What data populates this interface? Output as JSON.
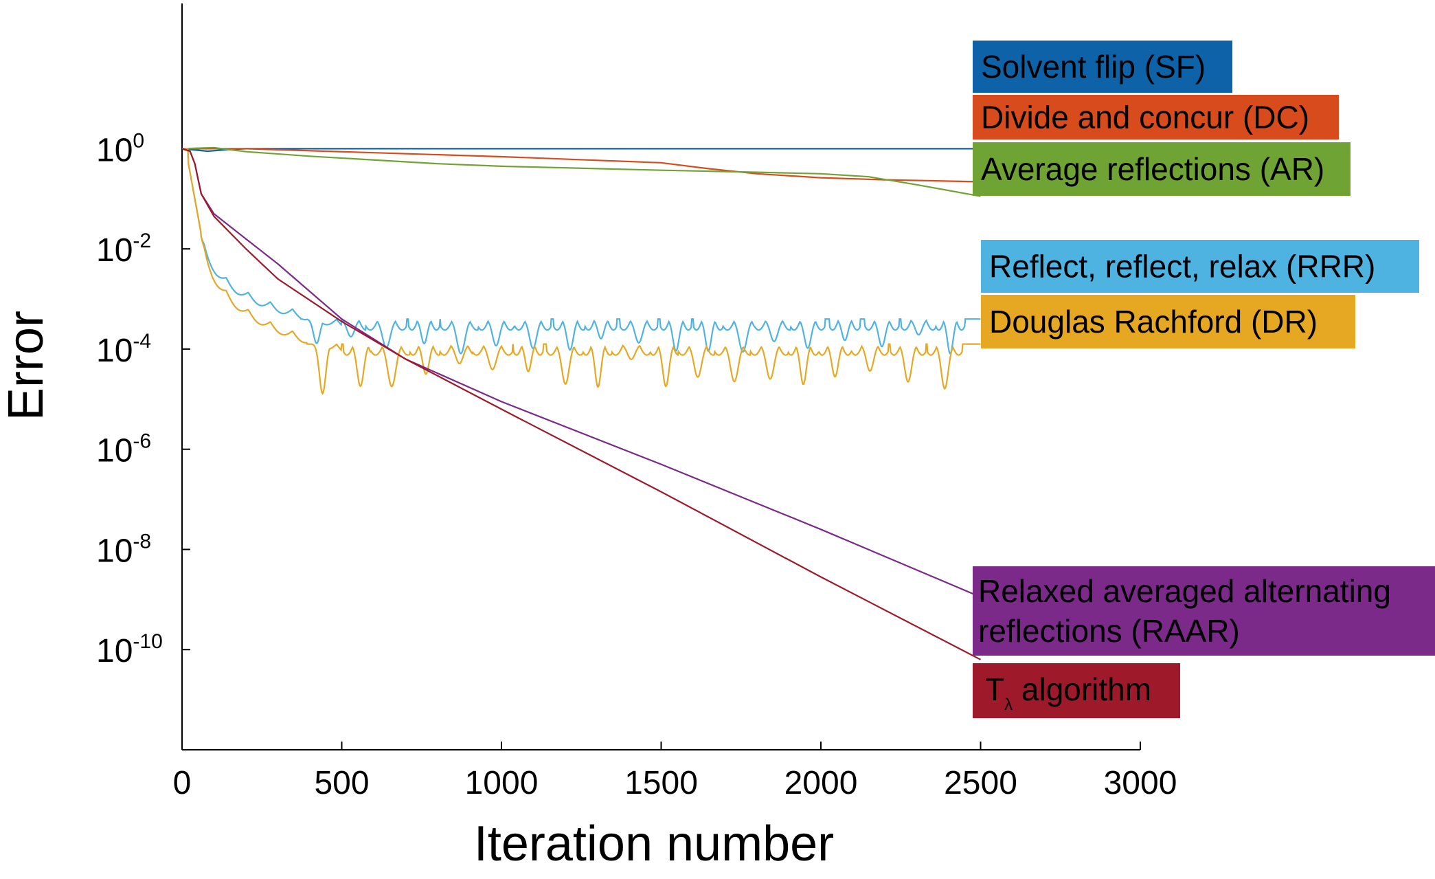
{
  "chart_data": {
    "type": "line",
    "title": "",
    "xlabel": "Iteration number",
    "ylabel": "Error",
    "xlim": [
      0,
      3000
    ],
    "ylim_log10": [
      -12,
      2.9
    ],
    "y_scale": "log",
    "x_ticks": [
      0,
      500,
      1000,
      1500,
      2000,
      2500,
      3000
    ],
    "x_tick_labels": [
      "0",
      "500",
      "1000",
      "1500",
      "2000",
      "2500",
      "3000"
    ],
    "y_ticks": [
      {
        "exp": 0,
        "base": "10",
        "sup": "0"
      },
      {
        "exp": -2,
        "base": "10",
        "sup": "-2"
      },
      {
        "exp": -4,
        "base": "10",
        "sup": "-4"
      },
      {
        "exp": -6,
        "base": "10",
        "sup": "-6"
      },
      {
        "exp": -8,
        "base": "10",
        "sup": "-8"
      },
      {
        "exp": -10,
        "base": "10",
        "sup": "-10"
      }
    ],
    "series": [
      {
        "name": "Solvent flip (SF)",
        "label": "Solvent flip (SF)",
        "color": "#0e63a8",
        "points": [
          [
            0,
            0
          ],
          [
            80,
            -0.05
          ],
          [
            140,
            -0.02
          ],
          [
            200,
            0
          ],
          [
            2500,
            0
          ]
        ]
      },
      {
        "name": "Divide and concur (DC)",
        "label": "Divide and concur (DC)",
        "color": "#d84b1c",
        "points": [
          [
            0,
            0
          ],
          [
            200,
            0
          ],
          [
            600,
            -0.08
          ],
          [
            1000,
            -0.16
          ],
          [
            1500,
            -0.28
          ],
          [
            1650,
            -0.4
          ],
          [
            1800,
            -0.5
          ],
          [
            2000,
            -0.58
          ],
          [
            2200,
            -0.62
          ],
          [
            2500,
            -0.66
          ]
        ]
      },
      {
        "name": "Average reflections (AR)",
        "label": "Average reflections (AR)",
        "color": "#6fa434",
        "points": [
          [
            0,
            0
          ],
          [
            100,
            0.02
          ],
          [
            200,
            -0.06
          ],
          [
            400,
            -0.15
          ],
          [
            800,
            -0.3
          ],
          [
            1000,
            -0.35
          ],
          [
            1500,
            -0.43
          ],
          [
            1800,
            -0.47
          ],
          [
            2000,
            -0.5
          ],
          [
            2150,
            -0.56
          ],
          [
            2300,
            -0.72
          ],
          [
            2500,
            -0.95
          ]
        ]
      },
      {
        "name": "Reflect, reflect, relax (RRR)",
        "label": "Reflect, reflect, relax (RRR)",
        "color": "#4eb3e1",
        "trend": "oscillating",
        "floor_log10": -3.4,
        "dips_to": -4.1
      },
      {
        "name": "Douglas Rachford (DR)",
        "label": "Douglas Rachford (DR)",
        "color": "#e6a822",
        "trend": "oscillating",
        "floor_log10": -3.9,
        "dips_to": -4.9
      },
      {
        "name": "Relaxed averaged alternating reflections (RAAR)",
        "label": [
          "Relaxed averaged alternating",
          "reflections (RAAR)"
        ],
        "color": "#7b2a8a",
        "points": [
          [
            0,
            0
          ],
          [
            25,
            -0.05
          ],
          [
            40,
            -0.3
          ],
          [
            60,
            -0.9
          ],
          [
            100,
            -1.3
          ],
          [
            200,
            -1.8
          ],
          [
            300,
            -2.3
          ],
          [
            500,
            -3.4
          ],
          [
            700,
            -4.2
          ],
          [
            1000,
            -5.05
          ],
          [
            1500,
            -6.3
          ],
          [
            2000,
            -7.6
          ],
          [
            2500,
            -8.95
          ]
        ]
      },
      {
        "name": "T_lambda algorithm",
        "label": "T",
        "label_sub": "λ",
        "label_rest": " algorithm",
        "color": "#9e1a2a",
        "points": [
          [
            0,
            0
          ],
          [
            25,
            -0.05
          ],
          [
            40,
            -0.3
          ],
          [
            60,
            -0.9
          ],
          [
            100,
            -1.35
          ],
          [
            200,
            -2.0
          ],
          [
            300,
            -2.6
          ],
          [
            500,
            -3.45
          ],
          [
            700,
            -4.2
          ],
          [
            1000,
            -5.2
          ],
          [
            1500,
            -6.85
          ],
          [
            2000,
            -8.55
          ],
          [
            2500,
            -10.2
          ]
        ]
      }
    ]
  }
}
